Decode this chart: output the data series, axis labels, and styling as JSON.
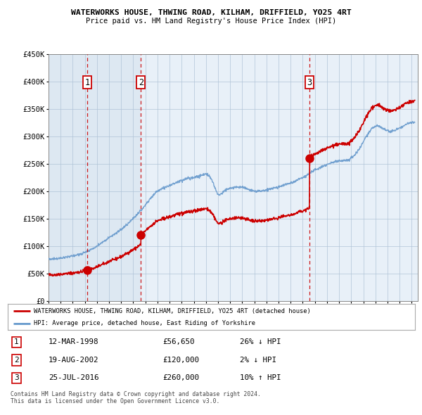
{
  "title_line1": "WATERWORKS HOUSE, THWING ROAD, KILHAM, DRIFFIELD, YO25 4RT",
  "title_line2": "Price paid vs. HM Land Registry's House Price Index (HPI)",
  "sale_prices": [
    56650,
    120000,
    260000
  ],
  "sale_labels": [
    "1",
    "2",
    "3"
  ],
  "sale_times": [
    1998.19,
    2002.63,
    2016.56
  ],
  "legend_entries": [
    "WATERWORKS HOUSE, THWING ROAD, KILHAM, DRIFFIELD, YO25 4RT (detached house)",
    "HPI: Average price, detached house, East Riding of Yorkshire"
  ],
  "table_rows": [
    {
      "num": "1",
      "date": "12-MAR-1998",
      "price": "£56,650",
      "hpi": "26% ↓ HPI"
    },
    {
      "num": "2",
      "date": "19-AUG-2002",
      "price": "£120,000",
      "hpi": "2% ↓ HPI"
    },
    {
      "num": "3",
      "date": "25-JUL-2016",
      "price": "£260,000",
      "hpi": "10% ↑ HPI"
    }
  ],
  "footer": "Contains HM Land Registry data © Crown copyright and database right 2024.\nThis data is licensed under the Open Government Licence v3.0.",
  "ylim": [
    0,
    450000
  ],
  "yticks": [
    0,
    50000,
    100000,
    150000,
    200000,
    250000,
    300000,
    350000,
    400000,
    450000
  ],
  "xmin": 1995.0,
  "xmax": 2025.5,
  "red_line_color": "#cc0000",
  "blue_line_color": "#6699cc",
  "dashed_vline_color": "#cc0000",
  "bg_color": "#ffffff",
  "chart_bg_color": "#e8f0f8",
  "grid_color": "#cccccc",
  "sale_marker_color": "#cc0000",
  "label_box_color": "#cc0000",
  "shading_color": "#dce8f5"
}
